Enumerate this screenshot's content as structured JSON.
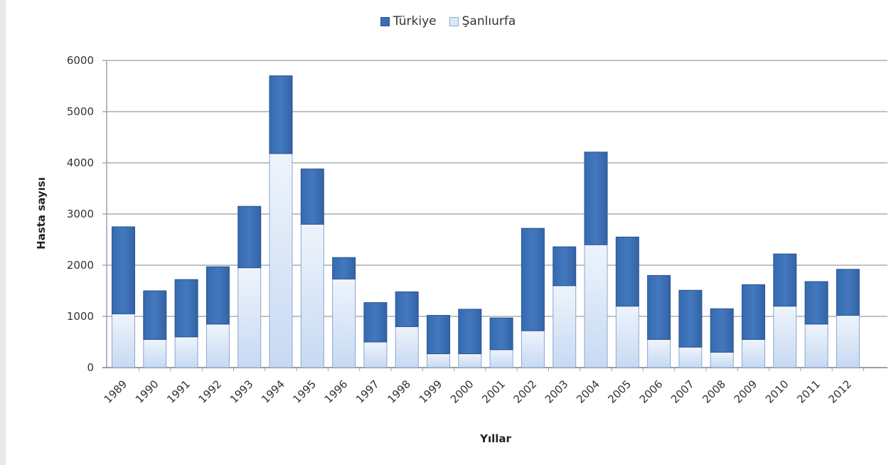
{
  "chart_data": {
    "type": "bar",
    "stacked": true,
    "categories": [
      "1989",
      "1990",
      "1991",
      "1992",
      "1993",
      "1994",
      "1995",
      "1996",
      "1997",
      "1998",
      "1999",
      "2000",
      "2001",
      "2002",
      "2003",
      "2004",
      "2005",
      "2006",
      "2007",
      "2008",
      "2009",
      "2010",
      "2011",
      "2012"
    ],
    "series": [
      {
        "name": "Şanlıurfa",
        "values": [
          1050,
          550,
          600,
          850,
          1950,
          4180,
          2800,
          1730,
          500,
          800,
          270,
          270,
          350,
          720,
          1600,
          2400,
          1200,
          550,
          400,
          300,
          550,
          1200,
          850,
          1020
        ]
      },
      {
        "name": "Türkiye",
        "values": [
          1700,
          950,
          1120,
          1120,
          1200,
          1520,
          1080,
          420,
          770,
          680,
          750,
          870,
          620,
          2000,
          760,
          1810,
          1350,
          1250,
          1110,
          850,
          1070,
          1020,
          830,
          900
        ]
      }
    ],
    "xlabel": "Yıllar",
    "ylabel": "Hasta sayısı",
    "ylim": [
      0,
      6000
    ],
    "yticks": [
      "0",
      "1000",
      "2000",
      "3000",
      "4000",
      "5000",
      "6000"
    ],
    "grid": true,
    "legend_position": "top-center",
    "colors": {
      "Türkiye": "#3c6eb5",
      "Şanlıurfa": "#dce8f8"
    }
  }
}
